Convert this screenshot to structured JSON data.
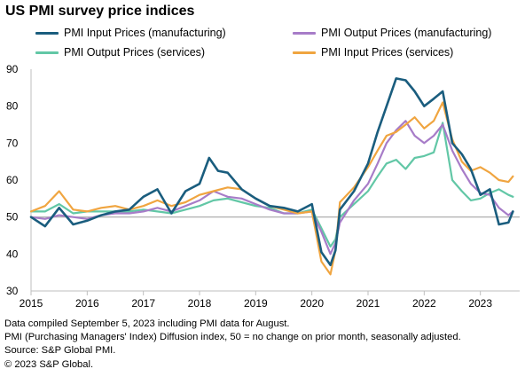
{
  "chart_data": {
    "type": "line",
    "title": "US PMI survey price indices",
    "xlabel": "",
    "ylabel": "",
    "xlim": [
      2015.0,
      2023.7
    ],
    "ylim": [
      30,
      90
    ],
    "y_ticks": [
      30,
      40,
      50,
      60,
      70,
      80,
      90
    ],
    "x_ticks": [
      "2015",
      "2016",
      "2017",
      "2018",
      "2019",
      "2020",
      "2021",
      "2022",
      "2023"
    ],
    "reference_line": 50,
    "grid": false,
    "legend_position": "top",
    "series": [
      {
        "name": "PMI Input Prices (manufacturing)",
        "color": "#1a5d7e",
        "x": [
          2015.0,
          2015.25,
          2015.5,
          2015.75,
          2016.0,
          2016.25,
          2016.5,
          2016.75,
          2017.0,
          2017.25,
          2017.5,
          2017.75,
          2018.0,
          2018.17,
          2018.33,
          2018.5,
          2018.75,
          2019.0,
          2019.25,
          2019.5,
          2019.75,
          2020.0,
          2020.17,
          2020.33,
          2020.42,
          2020.5,
          2020.75,
          2021.0,
          2021.17,
          2021.33,
          2021.5,
          2021.67,
          2021.83,
          2022.0,
          2022.17,
          2022.33,
          2022.5,
          2022.67,
          2022.83,
          2023.0,
          2023.17,
          2023.33,
          2023.5,
          2023.58
        ],
        "y": [
          50.0,
          47.5,
          52.5,
          48.0,
          49.0,
          50.5,
          51.5,
          52.0,
          55.5,
          57.5,
          51.0,
          57.0,
          59.0,
          66.0,
          62.5,
          62.0,
          57.5,
          55.0,
          53.0,
          52.5,
          51.5,
          53.5,
          40.5,
          37.0,
          41.0,
          52.0,
          57.0,
          64.5,
          73.0,
          80.0,
          87.5,
          87.0,
          84.0,
          80.0,
          82.0,
          84.0,
          70.0,
          67.0,
          63.0,
          56.0,
          57.5,
          48.0,
          48.5,
          51.5
        ]
      },
      {
        "name": "PMI Output Prices (manufacturing)",
        "color": "#a77cc8",
        "x": [
          2015.0,
          2015.25,
          2015.5,
          2015.75,
          2016.0,
          2016.25,
          2016.5,
          2016.75,
          2017.0,
          2017.25,
          2017.5,
          2017.75,
          2018.0,
          2018.25,
          2018.5,
          2018.75,
          2019.0,
          2019.25,
          2019.5,
          2019.75,
          2020.0,
          2020.17,
          2020.33,
          2020.42,
          2020.5,
          2020.75,
          2021.0,
          2021.17,
          2021.33,
          2021.5,
          2021.67,
          2021.83,
          2022.0,
          2022.17,
          2022.33,
          2022.5,
          2022.67,
          2022.83,
          2023.0,
          2023.17,
          2023.33,
          2023.5,
          2023.58
        ],
        "y": [
          50.0,
          49.5,
          50.5,
          50.0,
          49.5,
          50.5,
          51.0,
          51.0,
          51.5,
          52.5,
          51.5,
          53.0,
          54.5,
          57.0,
          55.5,
          55.0,
          53.5,
          52.0,
          51.0,
          51.0,
          51.5,
          46.0,
          40.0,
          43.0,
          48.5,
          54.5,
          59.0,
          64.5,
          70.0,
          73.5,
          76.0,
          72.0,
          70.0,
          72.0,
          75.0,
          68.0,
          63.0,
          59.0,
          56.5,
          56.0,
          52.5,
          50.5,
          51.5
        ]
      },
      {
        "name": "PMI Output Prices (services)",
        "color": "#62c7a6",
        "x": [
          2015.0,
          2015.25,
          2015.5,
          2015.75,
          2016.0,
          2016.25,
          2016.5,
          2016.75,
          2017.0,
          2017.25,
          2017.5,
          2017.75,
          2018.0,
          2018.25,
          2018.5,
          2018.75,
          2019.0,
          2019.25,
          2019.5,
          2019.75,
          2020.0,
          2020.17,
          2020.33,
          2020.42,
          2020.5,
          2020.75,
          2021.0,
          2021.17,
          2021.33,
          2021.5,
          2021.67,
          2021.83,
          2022.0,
          2022.17,
          2022.33,
          2022.5,
          2022.67,
          2022.83,
          2023.0,
          2023.17,
          2023.33,
          2023.5,
          2023.58
        ],
        "y": [
          51.5,
          51.5,
          53.5,
          51.0,
          51.5,
          51.5,
          51.5,
          51.5,
          52.0,
          51.5,
          51.0,
          52.0,
          53.0,
          54.5,
          55.0,
          54.0,
          53.0,
          52.5,
          51.0,
          51.0,
          52.0,
          47.0,
          42.0,
          44.0,
          50.0,
          53.5,
          57.0,
          61.0,
          64.5,
          65.5,
          63.0,
          66.0,
          66.5,
          67.5,
          75.5,
          60.0,
          57.0,
          54.5,
          55.0,
          56.5,
          57.5,
          56.0,
          55.5
        ]
      },
      {
        "name": "PMI Input Prices (services)",
        "color": "#f0a540",
        "x": [
          2015.0,
          2015.25,
          2015.5,
          2015.75,
          2016.0,
          2016.25,
          2016.5,
          2016.75,
          2017.0,
          2017.25,
          2017.5,
          2017.75,
          2018.0,
          2018.25,
          2018.5,
          2018.75,
          2019.0,
          2019.25,
          2019.5,
          2019.75,
          2020.0,
          2020.17,
          2020.33,
          2020.42,
          2020.5,
          2020.75,
          2021.0,
          2021.17,
          2021.33,
          2021.5,
          2021.67,
          2021.83,
          2022.0,
          2022.17,
          2022.33,
          2022.5,
          2022.67,
          2022.83,
          2023.0,
          2023.17,
          2023.33,
          2023.5,
          2023.58
        ],
        "y": [
          51.5,
          53.0,
          57.0,
          52.0,
          51.5,
          52.5,
          53.0,
          52.0,
          53.0,
          54.5,
          53.0,
          54.0,
          56.0,
          57.0,
          58.0,
          57.5,
          55.0,
          53.0,
          52.0,
          51.0,
          51.5,
          38.0,
          34.5,
          41.0,
          54.0,
          58.0,
          63.5,
          68.0,
          72.0,
          73.0,
          75.0,
          77.0,
          74.0,
          76.0,
          81.0,
          71.0,
          65.0,
          62.5,
          63.5,
          62.0,
          60.0,
          59.5,
          61.0
        ]
      }
    ]
  },
  "notes": [
    "Data compiled September 5, 2023 including PMI data for August.",
    "PMI (Purchasing Managers' Index) Diffusion index, 50 = no change on prior month, seasonally adjusted.",
    "Source: S&P Global PMI.",
    "© 2023 S&P Global."
  ]
}
